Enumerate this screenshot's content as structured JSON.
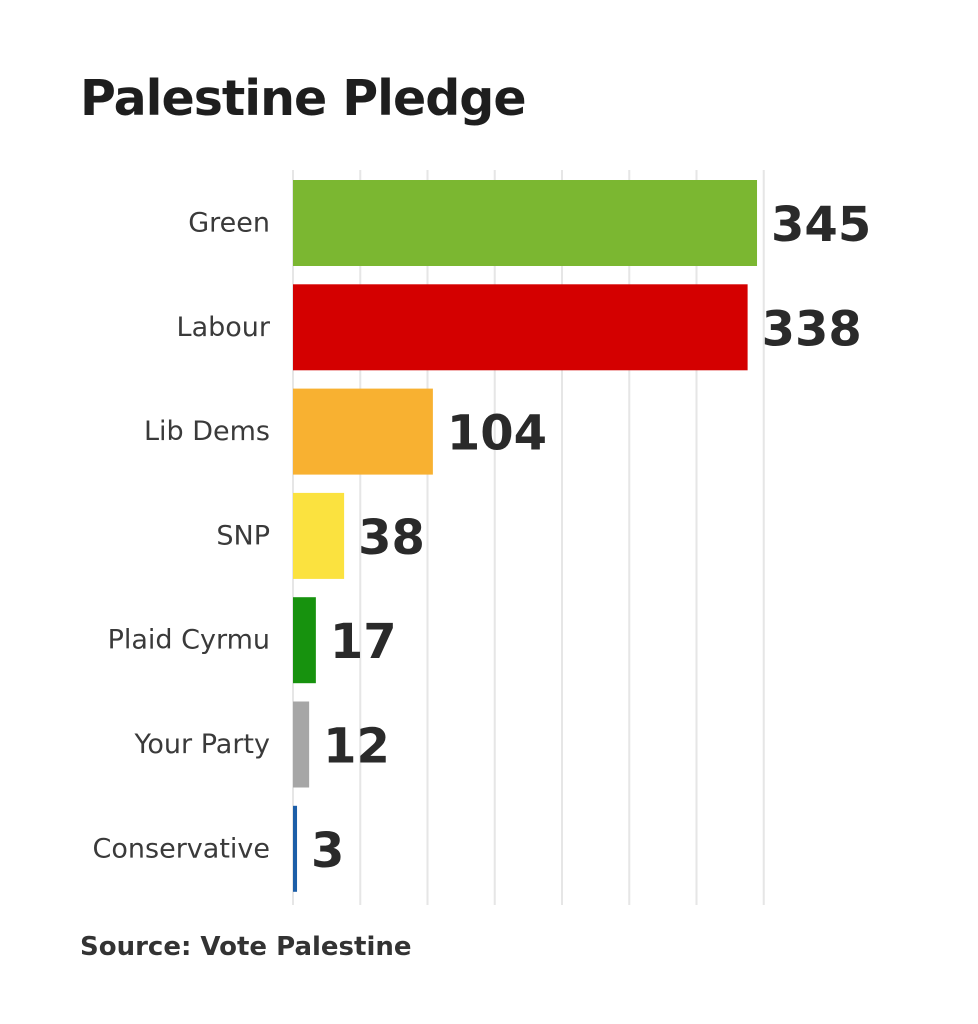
{
  "chart_data": {
    "type": "bar",
    "orientation": "horizontal",
    "title": "Palestine Pledge",
    "source": "Source: Vote Palestine",
    "categories": [
      "Green",
      "Labour",
      "Lib Dems",
      "SNP",
      "Plaid Cyrmu",
      "Your Party",
      "Conservative"
    ],
    "values": [
      345,
      338,
      104,
      38,
      17,
      12,
      3
    ],
    "colors": [
      "#7bb731",
      "#d40000",
      "#f8b131",
      "#fbe23f",
      "#17920e",
      "#a6a6a6",
      "#1c5ea8"
    ],
    "xlim": [
      0,
      350
    ],
    "grid": true,
    "xlabel": "",
    "ylabel": ""
  }
}
